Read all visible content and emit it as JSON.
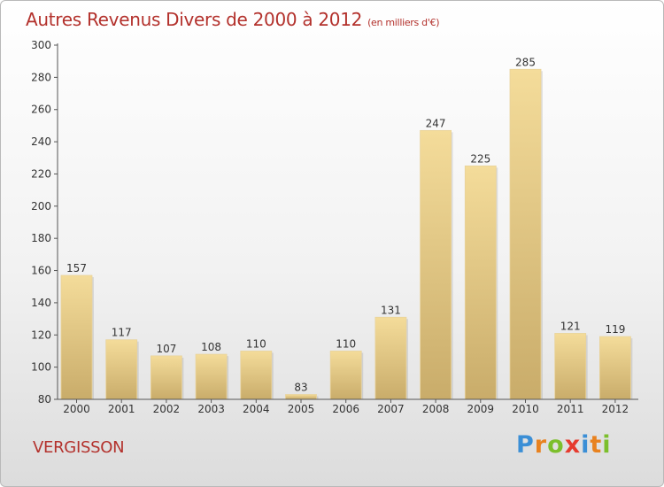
{
  "header": {
    "title": "Autres Revenus Divers de 2000 à 2012",
    "subtitle": "(en milliers d'€)"
  },
  "footer": {
    "town": "VERGISSON",
    "logo_text": "Proxiti"
  },
  "chart_data": {
    "type": "bar",
    "title": "Autres Revenus Divers de 2000 à 2012",
    "subtitle": "(en milliers d'€)",
    "xlabel": "",
    "ylabel": "",
    "categories": [
      "2000",
      "2001",
      "2002",
      "2003",
      "2004",
      "2005",
      "2006",
      "2007",
      "2008",
      "2009",
      "2010",
      "2011",
      "2012"
    ],
    "values": [
      157,
      117,
      107,
      108,
      110,
      83,
      110,
      131,
      247,
      225,
      285,
      121,
      119
    ],
    "ylim": [
      80,
      300
    ],
    "yticks": [
      80,
      100,
      120,
      140,
      160,
      180,
      200,
      220,
      240,
      260,
      280,
      300
    ],
    "grid": false,
    "colors": {
      "bar_light": "#f4dc9a",
      "bar_dark": "#c9ac6a",
      "axis": "#555555",
      "text": "#333333",
      "title": "#b3312c"
    }
  },
  "logo_colors": [
    "#3b8fd6",
    "#e8821f",
    "#7cbf2c",
    "#e63b2e",
    "#3b8fd6",
    "#e8821f",
    "#7cbf2c"
  ]
}
